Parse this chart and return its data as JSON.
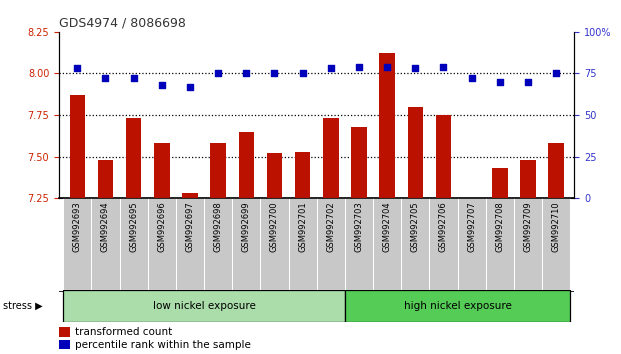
{
  "title": "GDS4974 / 8086698",
  "categories": [
    "GSM992693",
    "GSM992694",
    "GSM992695",
    "GSM992696",
    "GSM992697",
    "GSM992698",
    "GSM992699",
    "GSM992700",
    "GSM992701",
    "GSM992702",
    "GSM992703",
    "GSM992704",
    "GSM992705",
    "GSM992706",
    "GSM992707",
    "GSM992708",
    "GSM992709",
    "GSM992710"
  ],
  "bar_values": [
    7.87,
    7.48,
    7.73,
    7.58,
    7.28,
    7.58,
    7.65,
    7.52,
    7.53,
    7.73,
    7.68,
    8.12,
    7.8,
    7.75,
    7.25,
    7.43,
    7.48,
    7.58
  ],
  "dot_values": [
    78,
    72,
    72,
    68,
    67,
    75,
    75,
    75,
    75,
    78,
    79,
    79,
    78,
    79,
    72,
    70,
    70,
    75
  ],
  "bar_color": "#BB1100",
  "dot_color": "#0000BB",
  "ylim_left": [
    7.25,
    8.25
  ],
  "ylim_right": [
    0,
    100
  ],
  "yticks_left": [
    7.25,
    7.5,
    7.75,
    8.0,
    8.25
  ],
  "yticks_right": [
    0,
    25,
    50,
    75,
    100
  ],
  "group1_label": "low nickel exposure",
  "group2_label": "high nickel exposure",
  "group1_count": 10,
  "group2_count": 8,
  "stress_label": "stress",
  "legend_bar": "transformed count",
  "legend_dot": "percentile rank within the sample",
  "group1_color": "#AADDAA",
  "group2_color": "#55CC55",
  "left_tick_color": "#CC2200",
  "right_tick_color": "#3333CC",
  "xticklabel_bg": "#C8C8C8",
  "xticklabel_fontsize": 6.0,
  "bar_width": 0.55
}
